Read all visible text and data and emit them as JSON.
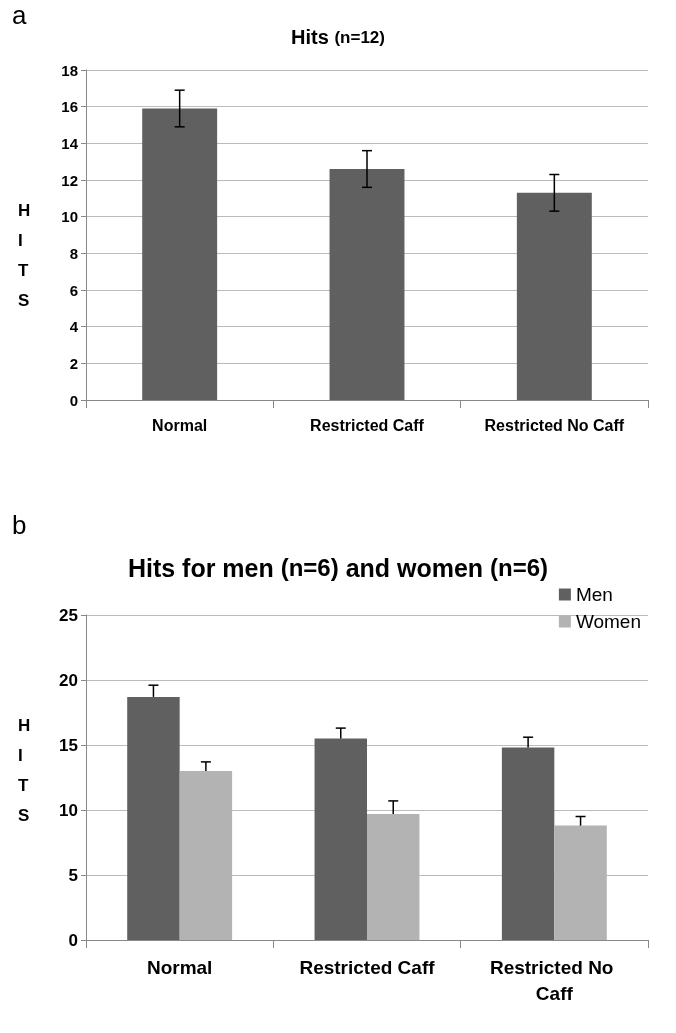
{
  "chart_data": [
    {
      "type": "bar",
      "title": "Hits (n=12)",
      "ylabel": "HITS",
      "annotations": [
        "a"
      ],
      "categories": [
        "Normal",
        "Restricted Caff",
        "Restricted No Caff"
      ],
      "values": [
        15.9,
        12.6,
        11.3
      ],
      "errors": [
        1.0,
        1.0,
        1.0
      ],
      "color": "#606060",
      "ylim": [
        0,
        18
      ],
      "yticks": [
        0,
        2,
        4,
        6,
        8,
        10,
        12,
        14,
        16,
        18
      ],
      "grid": "y"
    },
    {
      "type": "bar",
      "title": "Hits for men (n=6) and women (n=6)",
      "ylabel": "HITS",
      "annotations": [
        "b"
      ],
      "categories": [
        "Normal",
        "Restricted Caff",
        "Restricted No Caff"
      ],
      "series": [
        {
          "name": "Men",
          "color": "#606060",
          "values": [
            18.7,
            15.5,
            14.8
          ],
          "errors": [
            [
              18.7,
              19.6
            ],
            [
              15.5,
              16.3
            ],
            [
              14.8,
              15.6
            ]
          ]
        },
        {
          "name": "Women",
          "color": "#b3b3b3",
          "values": [
            13.0,
            9.7,
            8.8
          ],
          "errors": [
            [
              13.0,
              13.7
            ],
            [
              9.7,
              10.7
            ],
            [
              8.8,
              9.5
            ]
          ]
        }
      ],
      "ylim": [
        0,
        25
      ],
      "yticks": [
        0,
        5,
        10,
        15,
        20,
        25
      ],
      "grid": "y",
      "legend": "top right"
    }
  ]
}
